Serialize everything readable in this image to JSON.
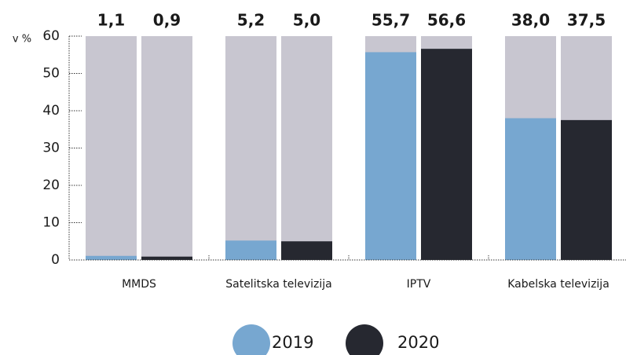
{
  "chart_data": {
    "type": "bar",
    "y_label": "v %",
    "categories": [
      "MMDS",
      "Satelitska televizija",
      "IPTV",
      "Kabelska televizija"
    ],
    "series": [
      {
        "name": "2019",
        "color": "#77a7d0",
        "values": [
          1.1,
          5.2,
          55.7,
          38.0
        ],
        "value_labels": [
          "1,1",
          "5,2",
          "55,7",
          "38,0"
        ]
      },
      {
        "name": "2020",
        "color": "#262830",
        "values": [
          0.9,
          5.0,
          56.6,
          37.5
        ],
        "value_labels": [
          "0,9",
          "5,0",
          "56,6",
          "37,5"
        ]
      }
    ],
    "ylim": [
      0,
      60
    ],
    "yticks": [
      0,
      10,
      20,
      30,
      40,
      50,
      60
    ],
    "background_color": "#c8c6d0"
  }
}
